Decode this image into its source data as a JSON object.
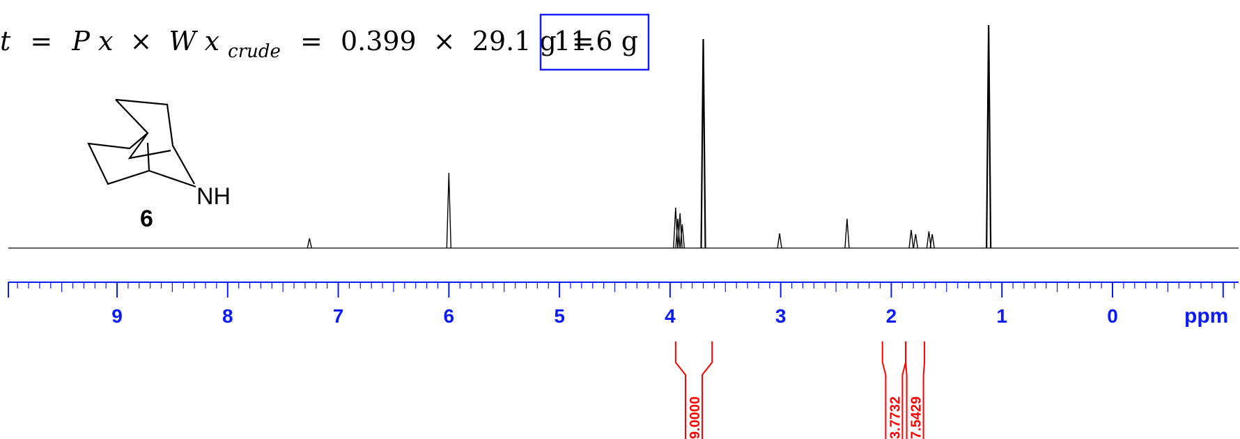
{
  "equation": {
    "lhs_fragment": "t",
    "eq1": "=",
    "p": "P",
    "x1": "x",
    "times1": "×",
    "w": "W",
    "x2": "x",
    "sub": "crude",
    "eq2": "=",
    "value1": "0.399",
    "times2": "×",
    "value2": "29.1 g",
    "eq3": "=",
    "result": "11.6 g",
    "result_box_color": "#1a1aff"
  },
  "structure": {
    "amine_label": "NH",
    "compound_number": "6"
  },
  "chart_data": {
    "type": "line",
    "title": "",
    "xlabel": "ppm",
    "ylabel": "",
    "xlim": [
      9.9,
      -1.15
    ],
    "x_reversed": true,
    "grid": false,
    "legend": "none",
    "ticks": {
      "major": [
        9,
        8,
        7,
        6,
        5,
        4,
        3,
        2,
        1,
        0
      ],
      "labels": [
        "9",
        "8",
        "7",
        "6",
        "5",
        "4",
        "3",
        "2",
        "1",
        "0"
      ],
      "minor_step": 0.1,
      "color": "#0a1aff"
    },
    "spectrum_color": "#000000",
    "peaks": [
      {
        "shift": 7.26,
        "height": 14
      },
      {
        "shift": 6.0,
        "height": 108
      },
      {
        "shift": 3.95,
        "height": 58
      },
      {
        "shift": 3.93,
        "height": 42
      },
      {
        "shift": 3.91,
        "height": 50
      },
      {
        "shift": 3.89,
        "height": 34
      },
      {
        "shift": 3.7,
        "height": 300
      },
      {
        "shift": 3.01,
        "height": 21
      },
      {
        "shift": 2.4,
        "height": 42
      },
      {
        "shift": 1.82,
        "height": 26
      },
      {
        "shift": 1.78,
        "height": 20
      },
      {
        "shift": 1.66,
        "height": 24
      },
      {
        "shift": 1.63,
        "height": 20
      },
      {
        "shift": 1.12,
        "height": 320
      }
    ],
    "integrals": [
      {
        "from": 3.95,
        "to": 3.62,
        "value": "9.0000"
      },
      {
        "from": 2.08,
        "to": 1.87,
        "value": "3.7732"
      },
      {
        "from": 1.87,
        "to": 1.7,
        "value": "7.5429"
      }
    ],
    "integral_color": "#ff0000"
  }
}
